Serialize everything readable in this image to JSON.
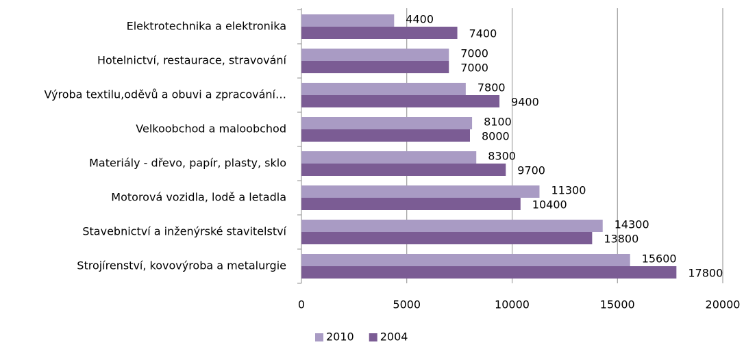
{
  "chart_data": {
    "type": "bar",
    "orientation": "horizontal",
    "categories": [
      "Elektrotechnika a elektronika",
      "Hotelnictví, restaurace, stravování",
      "Výroba textilu,oděvů a obuvi a zpracování…",
      "Velkoobchod a maloobchod",
      "Materiály - dřevo, papír, plasty, sklo",
      "Motorová vozidla, lodě a letadla",
      "Stavebnictví a inženýrské stavitelství",
      "Strojírenství, kovovýroba a metalurgie"
    ],
    "series": [
      {
        "name": "2010",
        "color": "#a99bc4",
        "values": [
          4400,
          7000,
          7800,
          8100,
          8300,
          11300,
          14300,
          15600
        ]
      },
      {
        "name": "2004",
        "color": "#7b5c94",
        "values": [
          7400,
          7000,
          9400,
          8000,
          9700,
          10400,
          13800,
          17800
        ]
      }
    ],
    "xlim": [
      0,
      20000
    ],
    "xticks": [
      0,
      5000,
      10000,
      15000,
      20000
    ],
    "grid": true,
    "legend": "bottom"
  }
}
